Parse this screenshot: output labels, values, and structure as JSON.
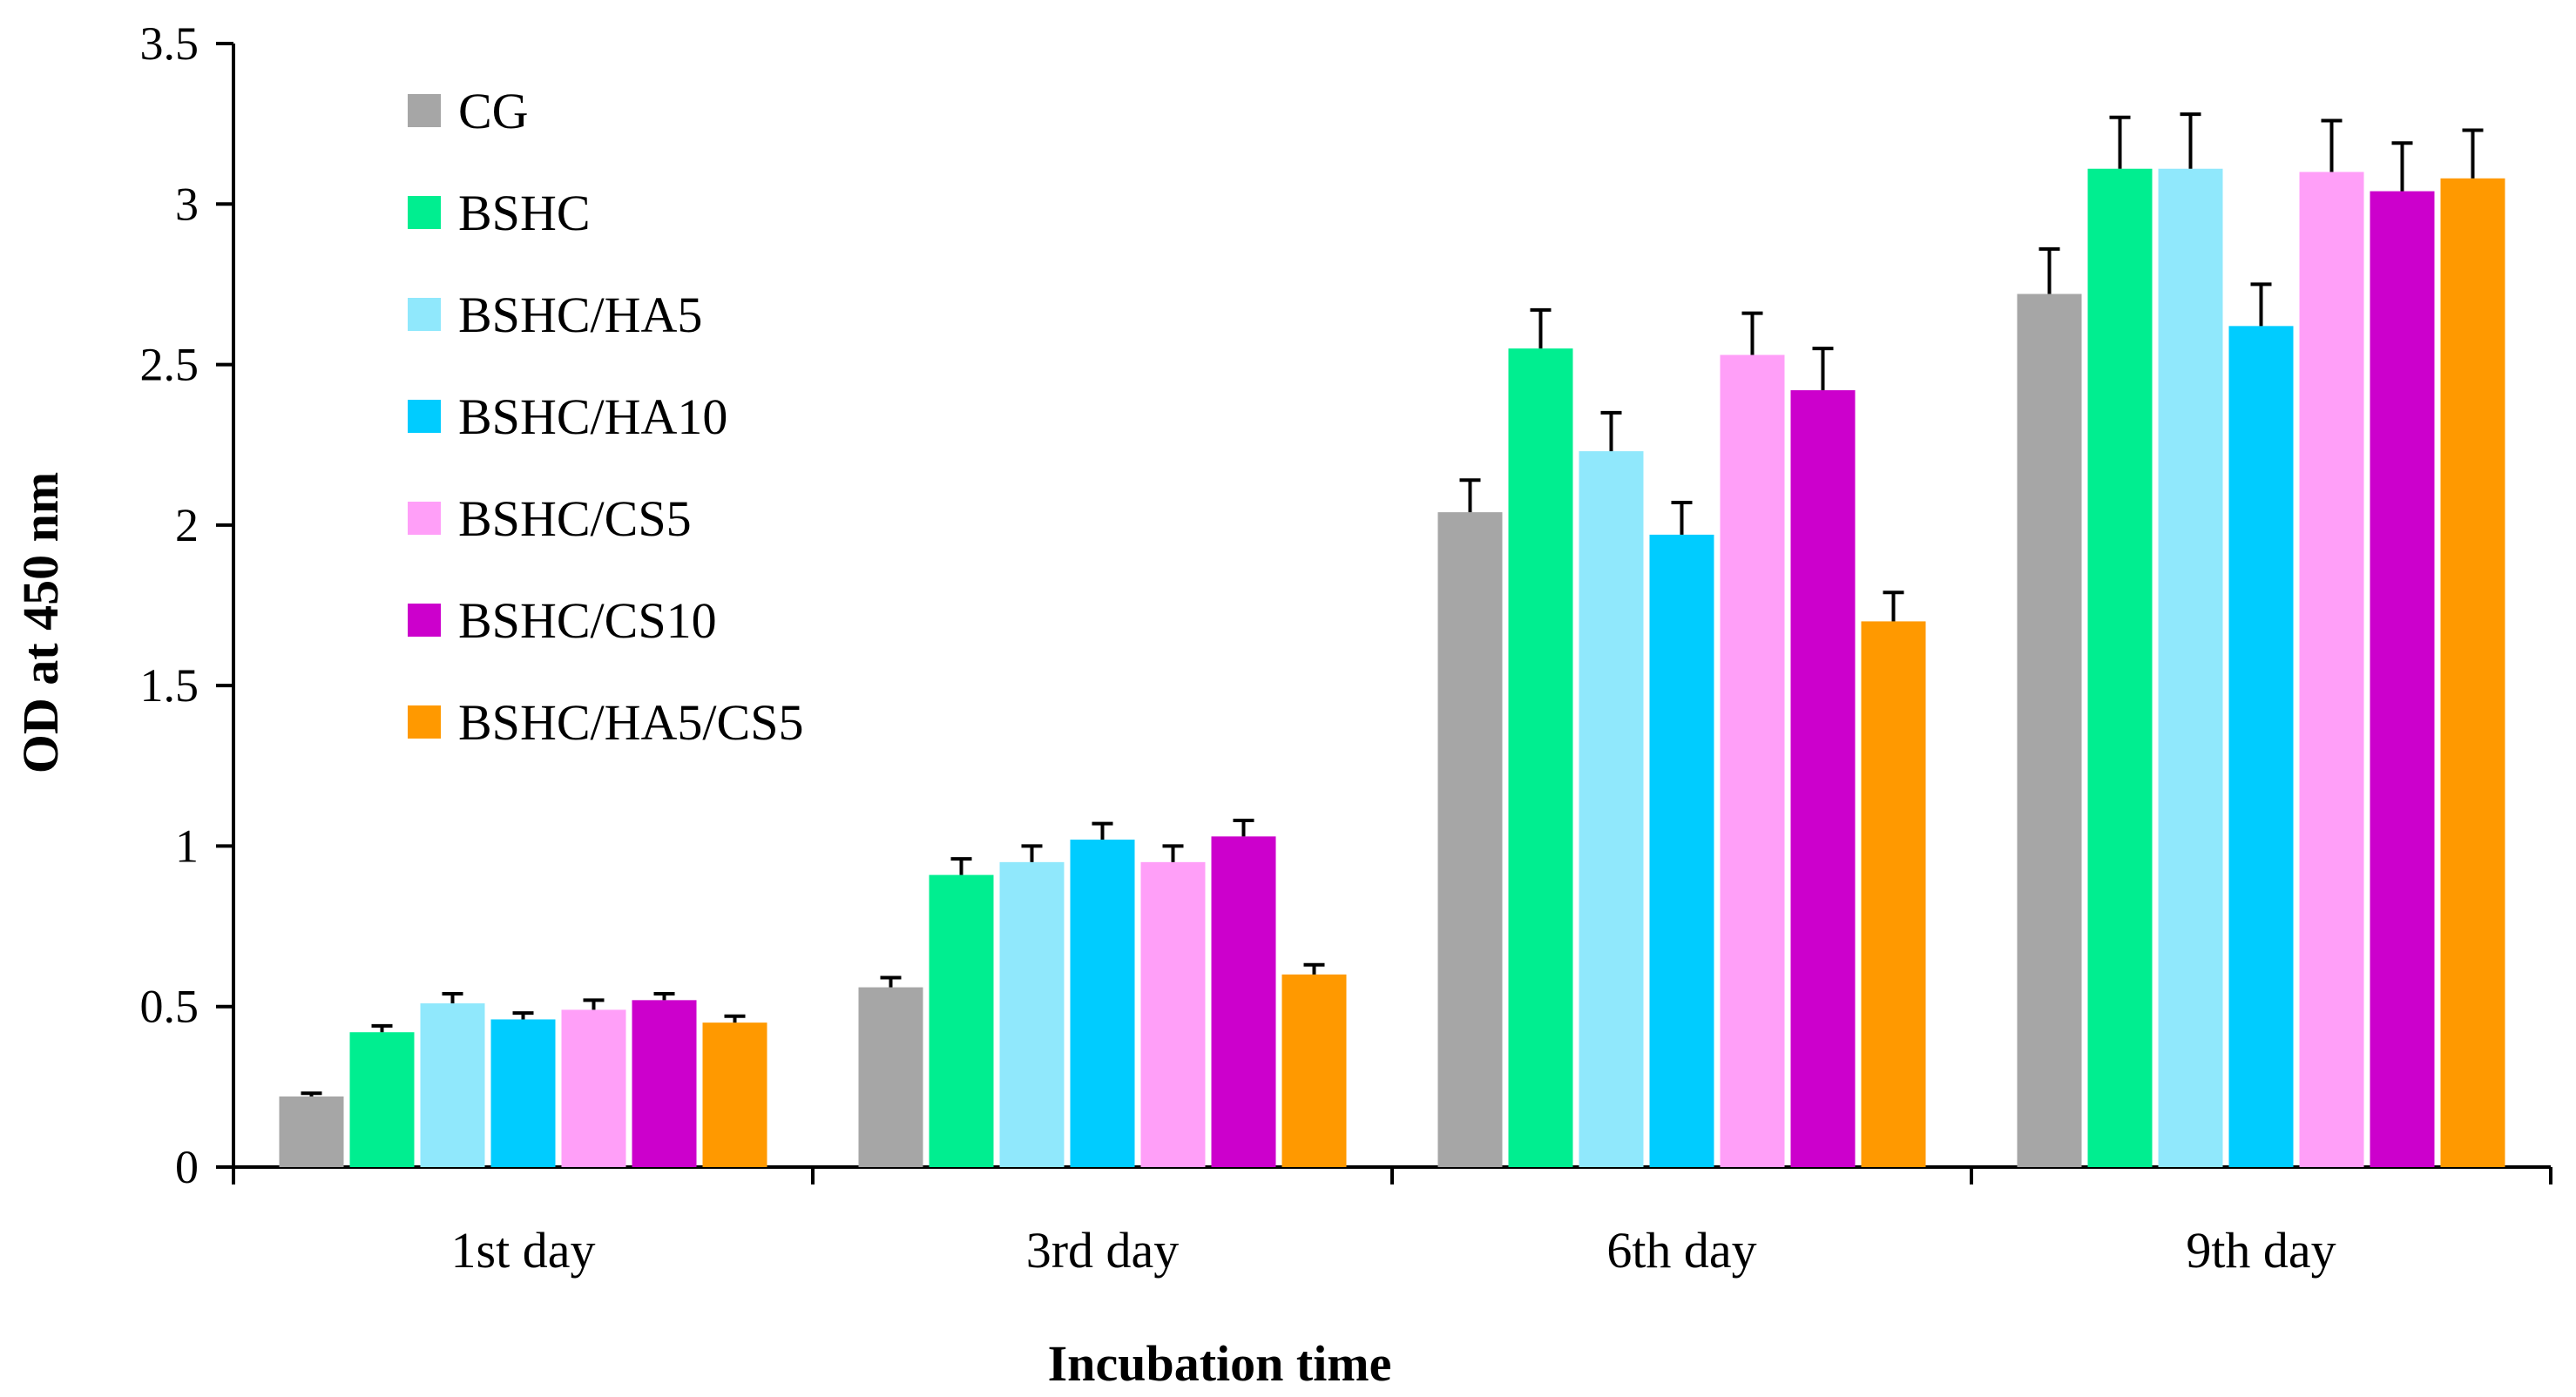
{
  "chart_data": {
    "type": "bar",
    "title": "",
    "xlabel": "Incubation time",
    "ylabel": "OD at 450 nm",
    "ylim": [
      0,
      3.5
    ],
    "yticks": [
      0,
      0.5,
      1,
      1.5,
      2,
      2.5,
      3,
      3.5
    ],
    "ytick_labels": [
      "0",
      "0.5",
      "1",
      "1.5",
      "2",
      "2.5",
      "3",
      "3.5"
    ],
    "grid": false,
    "legend_position": "top-left",
    "categories": [
      "1st day",
      "3rd day",
      "6th day",
      "9th day"
    ],
    "series": [
      {
        "name": "CG",
        "color": "#a6a6a6",
        "values": [
          0.22,
          0.56,
          2.04,
          2.72
        ],
        "errors": [
          0.01,
          0.03,
          0.1,
          0.14
        ]
      },
      {
        "name": "BSHC",
        "color": "#00ee90",
        "values": [
          0.42,
          0.91,
          2.55,
          3.11
        ],
        "errors": [
          0.02,
          0.05,
          0.12,
          0.16
        ]
      },
      {
        "name": "BSHC/HA5",
        "color": "#90e8fc",
        "values": [
          0.51,
          0.95,
          2.23,
          3.11
        ],
        "errors": [
          0.03,
          0.05,
          0.12,
          0.17
        ]
      },
      {
        "name": "BSHC/HA10",
        "color": "#00ccff",
        "values": [
          0.46,
          1.02,
          1.97,
          2.62
        ],
        "errors": [
          0.02,
          0.05,
          0.1,
          0.13
        ]
      },
      {
        "name": "BSHC/CS5",
        "color": "#ff9ff8",
        "values": [
          0.49,
          0.95,
          2.53,
          3.1
        ],
        "errors": [
          0.03,
          0.05,
          0.13,
          0.16
        ]
      },
      {
        "name": "BSHC/CS10",
        "color": "#cc00cc",
        "values": [
          0.52,
          1.03,
          2.42,
          3.04
        ],
        "errors": [
          0.02,
          0.05,
          0.13,
          0.15
        ]
      },
      {
        "name": "BSHC/HA5/CS5",
        "color": "#ff9900",
        "values": [
          0.45,
          0.6,
          1.7,
          3.08
        ],
        "errors": [
          0.02,
          0.03,
          0.09,
          0.15
        ]
      }
    ]
  }
}
